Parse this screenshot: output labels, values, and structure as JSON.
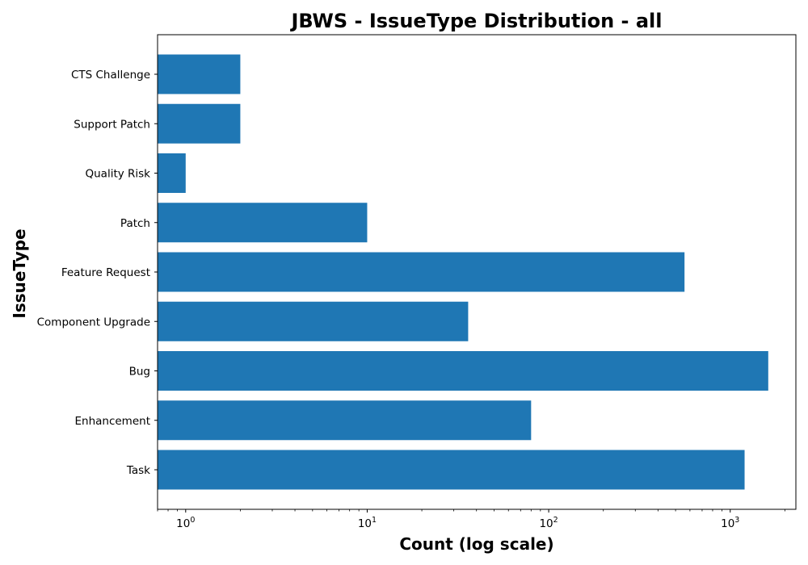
{
  "chart_data": {
    "type": "bar",
    "orientation": "horizontal",
    "title": "JBWS - IssueType Distribution - all",
    "xlabel": "Count (log scale)",
    "ylabel": "IssueType",
    "xscale": "log",
    "xlim": [
      0.7,
      2300
    ],
    "xticks": [
      {
        "base": "10",
        "exp": "0",
        "value": 1
      },
      {
        "base": "10",
        "exp": "1",
        "value": 10
      },
      {
        "base": "10",
        "exp": "2",
        "value": 100
      },
      {
        "base": "10",
        "exp": "3",
        "value": 1000
      }
    ],
    "categories": [
      "Task",
      "Enhancement",
      "Bug",
      "Component Upgrade",
      "Feature Request",
      "Patch",
      "Quality Risk",
      "Support Patch",
      "CTS Challenge"
    ],
    "values": [
      1200,
      80,
      1620,
      36,
      560,
      10,
      1,
      2,
      2
    ],
    "bar_color": "#1f77b4",
    "grid": false,
    "legend": "none"
  }
}
